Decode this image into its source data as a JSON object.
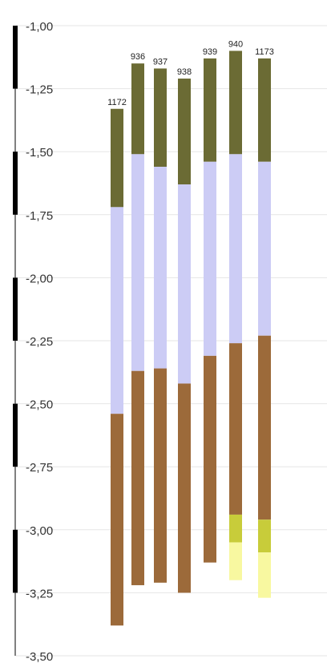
{
  "chart_data": {
    "type": "bar",
    "title": "",
    "xlabel": "",
    "ylabel": "",
    "ylim": [
      -3.5,
      -1.0
    ],
    "grid": true,
    "y_ticks": [
      "-1,00",
      "-1,25",
      "-1,50",
      "-1,75",
      "-2,00",
      "-2,25",
      "-2,50",
      "-2,75",
      "-3,00",
      "-3,25",
      "-3,50"
    ],
    "y_tick_values": [
      -1.0,
      -1.25,
      -1.5,
      -1.75,
      -2.0,
      -2.25,
      -2.5,
      -2.75,
      -3.0,
      -3.25,
      -3.5
    ],
    "layer_colors": [
      "#6b6b34",
      "#ccccf5",
      "#9c6a3a",
      "#c8cc3a",
      "#f8f8a0"
    ],
    "categories": [
      "1172",
      "936",
      "937",
      "938",
      "939",
      "940",
      "1173"
    ],
    "columns": [
      {
        "label": "1172",
        "layers": [
          [
            -1.33,
            -1.72
          ],
          [
            -1.72,
            -2.54
          ],
          [
            -2.54,
            -3.38
          ]
        ]
      },
      {
        "label": "936",
        "layers": [
          [
            -1.15,
            -1.51
          ],
          [
            -1.51,
            -2.37
          ],
          [
            -2.37,
            -3.22
          ]
        ]
      },
      {
        "label": "937",
        "layers": [
          [
            -1.17,
            -1.56
          ],
          [
            -1.56,
            -2.36
          ],
          [
            -2.36,
            -3.21
          ]
        ]
      },
      {
        "label": "938",
        "layers": [
          [
            -1.21,
            -1.63
          ],
          [
            -1.63,
            -2.42
          ],
          [
            -2.42,
            -3.25
          ]
        ]
      },
      {
        "label": "939",
        "layers": [
          [
            -1.13,
            -1.54
          ],
          [
            -1.54,
            -2.31
          ],
          [
            -2.31,
            -3.13
          ]
        ]
      },
      {
        "label": "940",
        "layers": [
          [
            -1.1,
            -1.51
          ],
          [
            -1.51,
            -2.26
          ],
          [
            -2.26,
            -2.94
          ],
          [
            -2.94,
            -3.05
          ],
          [
            -3.05,
            -3.2
          ]
        ]
      },
      {
        "label": "1173",
        "layers": [
          [
            -1.13,
            -1.54
          ],
          [
            -1.54,
            -2.23
          ],
          [
            -2.23,
            -2.96
          ],
          [
            -2.96,
            -3.09
          ],
          [
            -3.09,
            -3.27
          ]
        ]
      }
    ]
  }
}
